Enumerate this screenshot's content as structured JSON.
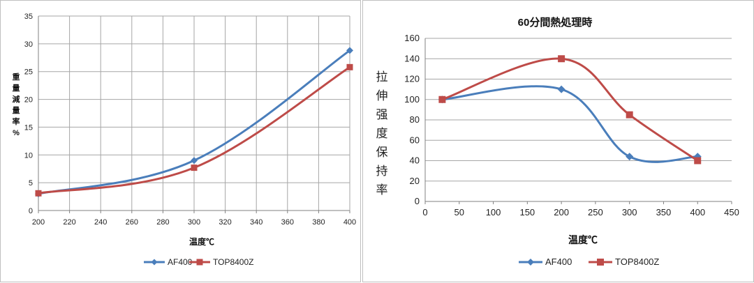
{
  "colors": {
    "af400": "#4a7ebb",
    "top8400z": "#be4b48",
    "grid": "#a6a6a6",
    "axis": "#808080"
  },
  "chart_data": [
    {
      "type": "line",
      "title": "",
      "xlabel": "温度℃",
      "ylabel": [
        "重",
        "量",
        "減",
        "量",
        "率",
        "%"
      ],
      "xlim": [
        200,
        400
      ],
      "ylim": [
        0,
        35
      ],
      "x_ticks": [
        200,
        220,
        240,
        260,
        280,
        300,
        320,
        340,
        360,
        380,
        400
      ],
      "y_ticks": [
        0,
        5,
        10,
        15,
        20,
        25,
        30,
        35
      ],
      "grid": true,
      "legend_position": "bottom",
      "series": [
        {
          "name": "AF400",
          "x": [
            200,
            300,
            400
          ],
          "y": [
            3.0,
            9.0,
            28.8
          ]
        },
        {
          "name": "TOP8400Z",
          "x": [
            200,
            300,
            400
          ],
          "y": [
            3.1,
            7.7,
            25.8
          ]
        }
      ]
    },
    {
      "type": "line",
      "title": "60分間熱処理時",
      "xlabel": "温度℃",
      "ylabel": [
        "拉",
        "伸",
        "强",
        "度",
        "保",
        "持",
        "率"
      ],
      "xlim": [
        0,
        450
      ],
      "ylim": [
        0,
        160
      ],
      "x_ticks": [
        0,
        50,
        100,
        150,
        200,
        250,
        300,
        350,
        400,
        450
      ],
      "y_ticks": [
        0,
        20,
        40,
        60,
        80,
        100,
        120,
        140,
        160
      ],
      "grid": true,
      "legend_position": "bottom",
      "series": [
        {
          "name": "AF400",
          "x": [
            25,
            200,
            300,
            400
          ],
          "y": [
            100,
            110,
            44,
            44
          ]
        },
        {
          "name": "TOP8400Z",
          "x": [
            25,
            200,
            300,
            400
          ],
          "y": [
            100,
            140,
            85,
            40
          ]
        }
      ]
    }
  ]
}
